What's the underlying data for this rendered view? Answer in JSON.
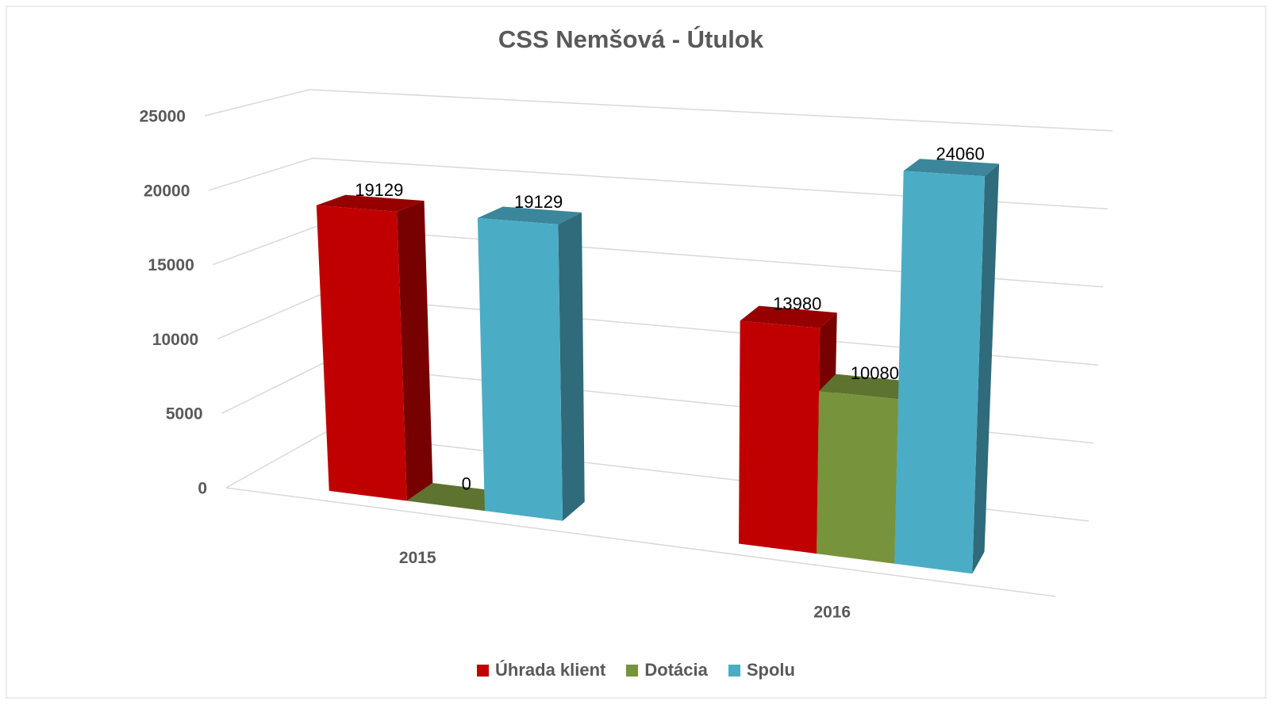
{
  "chart_data": {
    "type": "bar3d",
    "title": "CSS Nemšová  - Útulok",
    "categories": [
      "2015",
      "2016"
    ],
    "series": [
      {
        "name": "Úhrada klient",
        "color": "#c00000",
        "values": [
          19129,
          13980
        ]
      },
      {
        "name": "Dotácia",
        "color": "#77933c",
        "values": [
          0,
          10080
        ]
      },
      {
        "name": "Spolu",
        "color": "#4bacc6",
        "values": [
          19129,
          24060
        ]
      }
    ],
    "ylim": [
      0,
      25000
    ],
    "yticks": [
      0,
      5000,
      10000,
      15000,
      20000,
      25000
    ],
    "grid": true,
    "legend": "bottom"
  }
}
